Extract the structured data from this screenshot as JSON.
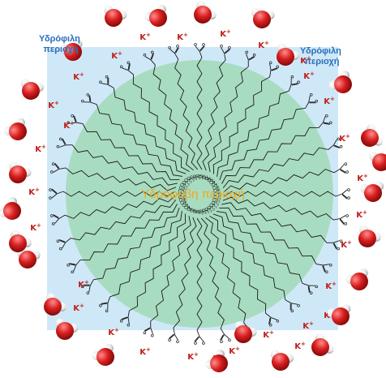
{
  "labels": {
    "hydrophilic_left": [
      "Υδρόφιλη",
      "περιοχή"
    ],
    "hydrophilic_right": [
      "Υδρόφιλη",
      "περιοχή"
    ],
    "hydrophobic_center": "Υδρόφοβη περιοχή",
    "counter_ion": "K",
    "counter_ion_charge": "+",
    "methyl_group": "CH",
    "methyl_subscript": "3"
  },
  "colors": {
    "hydrophilic_region": "#cfe8f8",
    "hydrophobic_core": "#a8dcc0",
    "hydrophilic_text": "#2a6fba",
    "hydrophobic_text": "#f0a91a",
    "counter_ion": "#c0201c",
    "water_oxygen": "#d81e1e",
    "water_hydrogen": "#f2f2f2",
    "chain": "#1a1a1a"
  },
  "structure": {
    "surfactant_chain_count": 36,
    "counter_ion_count": 30,
    "water_molecule_count": 26
  },
  "icons": {
    "water": "water-molecule-icon",
    "carboxylate": "carboxylate-head-icon",
    "chain": "hydrocarbon-tail-icon"
  }
}
